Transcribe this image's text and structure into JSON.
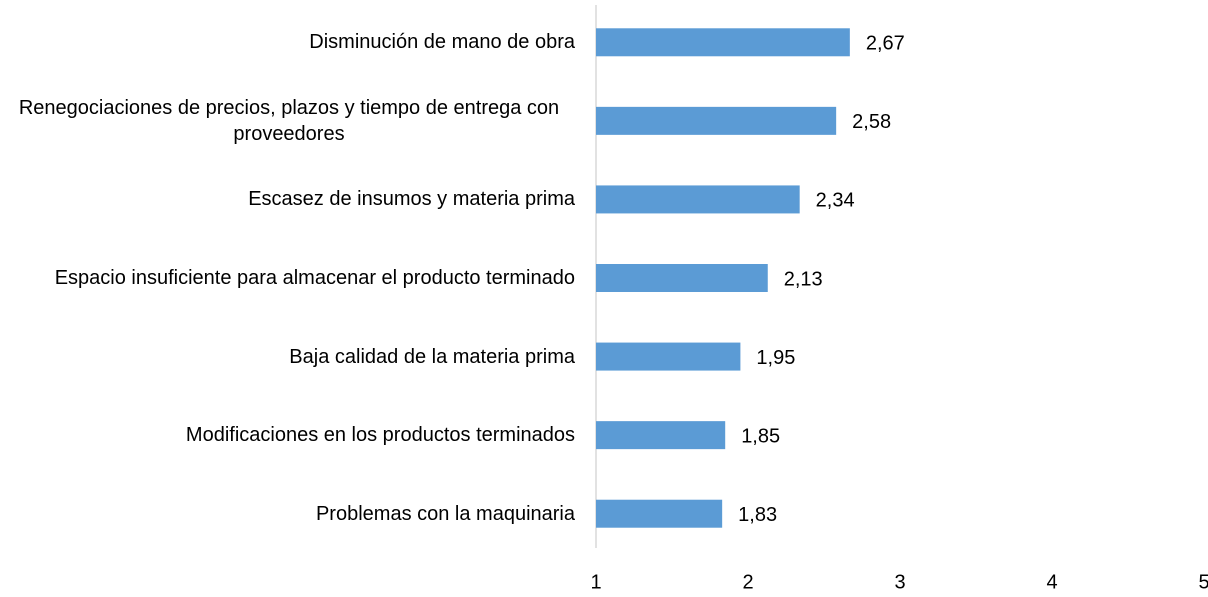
{
  "chart_data": {
    "type": "bar",
    "orientation": "horizontal",
    "categories": [
      "Disminución de mano de obra",
      "Renegociaciones de precios, plazos y tiempo de entrega con proveedores",
      "Escasez de insumos y materia prima",
      "Espacio insuficiente para almacenar el producto terminado",
      "Baja calidad de la materia prima",
      "Modificaciones en los productos terminados",
      "Problemas con la maquinaria"
    ],
    "values": [
      2.67,
      2.58,
      2.34,
      2.13,
      1.95,
      1.85,
      1.83
    ],
    "value_labels": [
      "2,67",
      "2,58",
      "2,34",
      "2,13",
      "1,95",
      "1,85",
      "1,83"
    ],
    "color": "#5b9bd5",
    "xlim": [
      1,
      5
    ],
    "xticks": [
      1,
      2,
      3,
      4,
      5
    ],
    "grid": false
  }
}
